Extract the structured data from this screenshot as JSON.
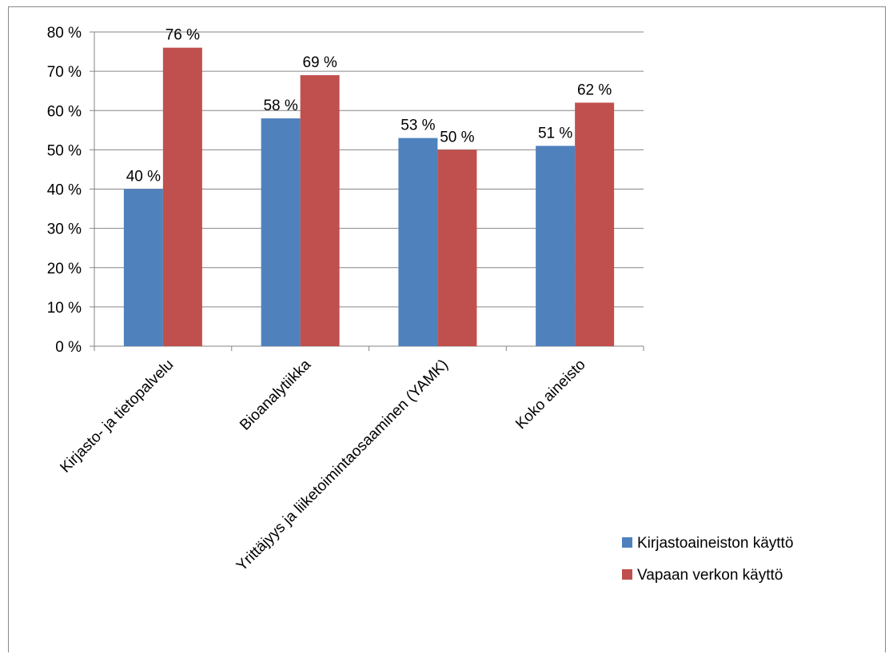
{
  "chart_data": {
    "type": "bar",
    "categories": [
      "Kirjasto- ja tietopalvelu",
      "Bioanalytiikka",
      "Yrittäjyys ja liiketoimintaosaaminen (YAMK)",
      "Koko aineisto"
    ],
    "series": [
      {
        "name": "Kirjastoaineiston käyttö",
        "values": [
          40,
          58,
          53,
          51
        ],
        "labels": [
          "40 %",
          "58 %",
          "53 %",
          "51 %"
        ],
        "color": "#4f81bd"
      },
      {
        "name": "Vapaan verkon käyttö",
        "values": [
          76,
          69,
          50,
          62
        ],
        "labels": [
          "76 %",
          "69 %",
          "50 %",
          "62 %"
        ],
        "color": "#c0504d"
      }
    ],
    "ylim": [
      0,
      80
    ],
    "yticks": [
      0,
      10,
      20,
      30,
      40,
      50,
      60,
      70,
      80
    ],
    "ytick_labels": [
      "0 %",
      "10 %",
      "20 %",
      "30 %",
      "40 %",
      "50 %",
      "60 %",
      "70 %",
      "80 %"
    ],
    "grid": true,
    "legend_position": "right"
  }
}
